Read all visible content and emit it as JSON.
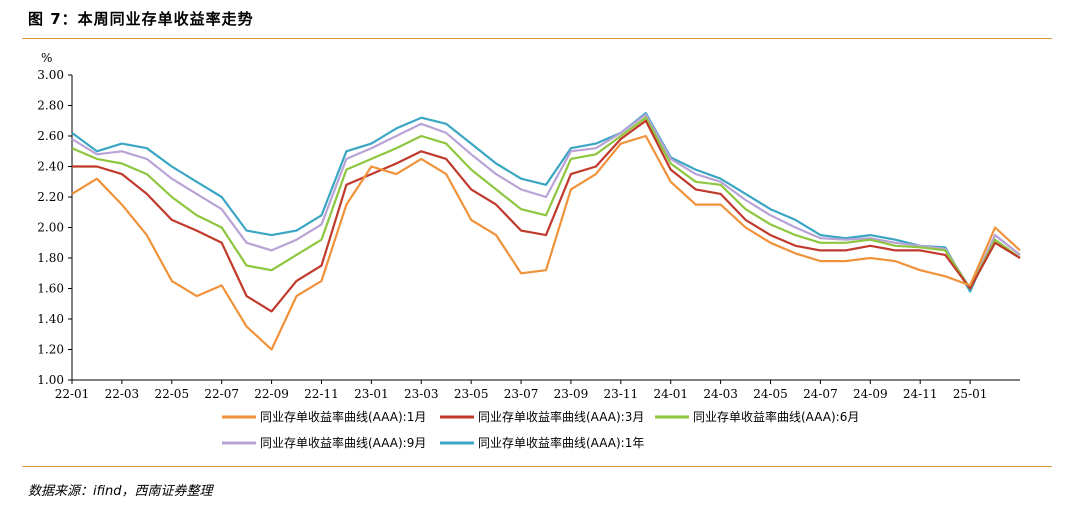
{
  "title": "图 7：本周同业存单收益率走势",
  "source": "数据来源：ifind，西南证券整理",
  "chart_data": {
    "type": "line",
    "unit_label": "%",
    "ylim": [
      1.0,
      3.0
    ],
    "yticks": [
      "1.00",
      "1.20",
      "1.40",
      "1.60",
      "1.80",
      "2.00",
      "2.20",
      "2.40",
      "2.60",
      "2.80",
      "3.00"
    ],
    "xticks": [
      "22-01",
      "22-03",
      "22-05",
      "22-07",
      "22-09",
      "22-11",
      "23-01",
      "23-03",
      "23-05",
      "23-07",
      "23-09",
      "23-11",
      "24-01",
      "24-03",
      "24-05",
      "24-07",
      "24-09",
      "24-11",
      "25-01"
    ],
    "x_months": [
      "22-01",
      "22-02",
      "22-03",
      "22-04",
      "22-05",
      "22-06",
      "22-07",
      "22-08",
      "22-09",
      "22-10",
      "22-11",
      "22-12",
      "23-01",
      "23-02",
      "23-03",
      "23-04",
      "23-05",
      "23-06",
      "23-07",
      "23-08",
      "23-09",
      "23-10",
      "23-11",
      "23-12",
      "24-01",
      "24-02",
      "24-03",
      "24-04",
      "24-05",
      "24-06",
      "24-07",
      "24-08",
      "24-09",
      "24-10",
      "24-11",
      "24-12",
      "25-01",
      "25-02",
      "25-03"
    ],
    "grid": false,
    "legend_position": "bottom",
    "series": [
      {
        "name": "同业存单收益率曲线(AAA):1月",
        "color": "#f0923a",
        "values": [
          2.22,
          2.32,
          2.15,
          1.95,
          1.65,
          1.55,
          1.62,
          1.35,
          1.2,
          1.55,
          1.65,
          2.15,
          2.4,
          2.35,
          2.45,
          2.35,
          2.05,
          1.95,
          1.7,
          1.72,
          2.25,
          2.35,
          2.55,
          2.6,
          2.3,
          2.15,
          2.15,
          2.0,
          1.9,
          1.83,
          1.78,
          1.78,
          1.8,
          1.78,
          1.72,
          1.68,
          1.62,
          2.0,
          1.85
        ]
      },
      {
        "name": "同业存单收益率曲线(AAA):3月",
        "color": "#c0392b",
        "values": [
          2.4,
          2.4,
          2.35,
          2.22,
          2.05,
          1.98,
          1.9,
          1.55,
          1.45,
          1.65,
          1.75,
          2.28,
          2.35,
          2.42,
          2.5,
          2.45,
          2.25,
          2.15,
          1.98,
          1.95,
          2.35,
          2.4,
          2.58,
          2.7,
          2.38,
          2.25,
          2.22,
          2.05,
          1.95,
          1.88,
          1.85,
          1.85,
          1.88,
          1.85,
          1.85,
          1.82,
          1.6,
          1.9,
          1.8
        ]
      },
      {
        "name": "同业存单收益率曲线(AAA):6月",
        "color": "#8dc63f",
        "values": [
          2.52,
          2.45,
          2.42,
          2.35,
          2.2,
          2.08,
          2.0,
          1.75,
          1.72,
          1.82,
          1.92,
          2.38,
          2.45,
          2.52,
          2.6,
          2.55,
          2.38,
          2.25,
          2.12,
          2.08,
          2.45,
          2.48,
          2.6,
          2.72,
          2.42,
          2.3,
          2.28,
          2.12,
          2.02,
          1.95,
          1.9,
          1.9,
          1.92,
          1.88,
          1.87,
          1.85,
          1.6,
          1.92,
          1.8
        ]
      },
      {
        "name": "同业存单收益率曲线(AAA):9月",
        "color": "#b9a3d6",
        "values": [
          2.58,
          2.48,
          2.5,
          2.45,
          2.32,
          2.22,
          2.12,
          1.9,
          1.85,
          1.92,
          2.02,
          2.45,
          2.52,
          2.6,
          2.68,
          2.62,
          2.48,
          2.35,
          2.25,
          2.2,
          2.5,
          2.52,
          2.62,
          2.74,
          2.45,
          2.35,
          2.3,
          2.18,
          2.08,
          2.0,
          1.93,
          1.92,
          1.93,
          1.9,
          1.88,
          1.86,
          1.6,
          1.95,
          1.82
        ]
      },
      {
        "name": "同业存单收益率曲线(AAA):1年",
        "color": "#3aa6c4",
        "values": [
          2.62,
          2.5,
          2.55,
          2.52,
          2.4,
          2.3,
          2.2,
          1.98,
          1.95,
          1.98,
          2.08,
          2.5,
          2.55,
          2.65,
          2.72,
          2.68,
          2.55,
          2.42,
          2.32,
          2.28,
          2.52,
          2.55,
          2.62,
          2.75,
          2.46,
          2.38,
          2.32,
          2.22,
          2.12,
          2.05,
          1.95,
          1.93,
          1.95,
          1.92,
          1.88,
          1.87,
          1.58,
          1.95,
          1.82
        ]
      }
    ]
  }
}
